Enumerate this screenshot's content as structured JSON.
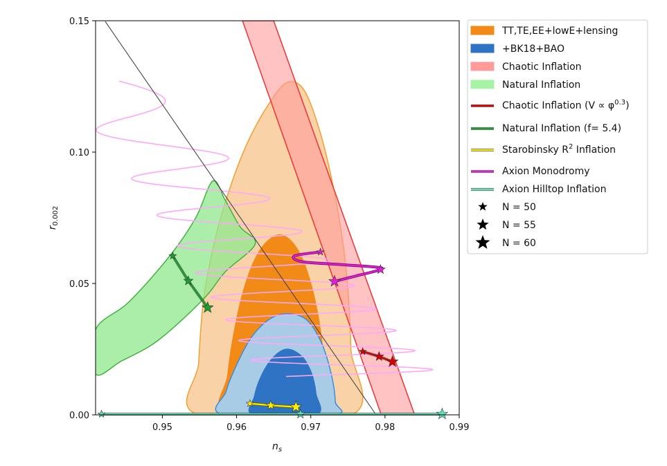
{
  "chart_data": {
    "type": "scatter",
    "title": "",
    "xlabel": "n_s",
    "ylabel": "r_{0.002}",
    "xlim": [
      0.941,
      0.99
    ],
    "ylim": [
      0.0,
      0.15
    ],
    "xticks": [
      {
        "value": 0.95,
        "label": "0.95"
      },
      {
        "value": 0.96,
        "label": "0.96"
      },
      {
        "value": 0.97,
        "label": "0.97"
      },
      {
        "value": 0.98,
        "label": "0.98"
      },
      {
        "value": 0.99,
        "label": "0.99"
      }
    ],
    "yticks": [
      {
        "value": 0.0,
        "label": "0.00"
      },
      {
        "value": 0.05,
        "label": "0.05"
      },
      {
        "value": 0.1,
        "label": "0.10"
      },
      {
        "value": 0.15,
        "label": "0.15"
      }
    ],
    "grid": false,
    "legend_position": "outside-right",
    "regions": [
      {
        "name": "TT,TE,EE+lowE+lensing (95%)",
        "color": "#f9d3a7",
        "edge": "#f0a030",
        "points": [
          [
            0.9548,
            0.0
          ],
          [
            0.9549,
            0.02
          ],
          [
            0.9556,
            0.045
          ],
          [
            0.9572,
            0.068
          ],
          [
            0.9593,
            0.088
          ],
          [
            0.9617,
            0.105
          ],
          [
            0.9645,
            0.119
          ],
          [
            0.9668,
            0.1265
          ],
          [
            0.969,
            0.124
          ],
          [
            0.971,
            0.11
          ],
          [
            0.9728,
            0.09
          ],
          [
            0.9742,
            0.068
          ],
          [
            0.975,
            0.048
          ],
          [
            0.9754,
            0.025
          ],
          [
            0.9755,
            0.0
          ]
        ]
      },
      {
        "name": "TT,TE,EE+lowE+lensing (68%)",
        "color": "#f28a18",
        "edge": "#f28a18",
        "points": [
          [
            0.9585,
            0.0
          ],
          [
            0.9588,
            0.015
          ],
          [
            0.9597,
            0.032
          ],
          [
            0.961,
            0.048
          ],
          [
            0.9628,
            0.061
          ],
          [
            0.9648,
            0.0675
          ],
          [
            0.9665,
            0.068
          ],
          [
            0.9684,
            0.062
          ],
          [
            0.97,
            0.05
          ],
          [
            0.9712,
            0.034
          ],
          [
            0.9718,
            0.018
          ],
          [
            0.972,
            0.0
          ]
        ]
      },
      {
        "name": "+BK18+BAO (95%)",
        "color": "#a8cce6",
        "edge": "#3a8de0",
        "points": [
          [
            0.9582,
            0.0
          ],
          [
            0.9586,
            0.009
          ],
          [
            0.96,
            0.019
          ],
          [
            0.962,
            0.0295
          ],
          [
            0.9645,
            0.0365
          ],
          [
            0.967,
            0.0385
          ],
          [
            0.9695,
            0.036
          ],
          [
            0.9715,
            0.027
          ],
          [
            0.9728,
            0.015
          ],
          [
            0.9733,
            0.005
          ],
          [
            0.973,
            0.0
          ]
        ]
      },
      {
        "name": "+BK18+BAO (68%)",
        "color": "#2f73c4",
        "edge": "#2f73c4",
        "points": [
          [
            0.9623,
            0.0
          ],
          [
            0.9624,
            0.007
          ],
          [
            0.9634,
            0.0152
          ],
          [
            0.965,
            0.022
          ],
          [
            0.9668,
            0.025
          ],
          [
            0.9688,
            0.0222
          ],
          [
            0.9701,
            0.0158
          ],
          [
            0.9707,
            0.008
          ],
          [
            0.9707,
            0.0
          ]
        ]
      },
      {
        "name": "Chaotic Inflation band",
        "color": "#ff9b9b",
        "opacity": 0.6,
        "edge": "#ee3333",
        "points": [
          [
            0.9608,
            0.15
          ],
          [
            0.965,
            0.15
          ],
          [
            0.984,
            0.0
          ],
          [
            0.9795,
            0.0
          ]
        ]
      },
      {
        "name": "Natural Inflation band",
        "color": "#8ee88e",
        "opacity": 0.75,
        "edge": "#45b045",
        "points": [
          [
            0.941,
            0.0325
          ],
          [
            0.9455,
            0.043
          ],
          [
            0.951,
            0.0605
          ],
          [
            0.9545,
            0.075
          ],
          [
            0.9568,
            0.089
          ],
          [
            0.9585,
            0.0815
          ],
          [
            0.9605,
            0.0715
          ],
          [
            0.9625,
            0.065
          ],
          [
            0.9585,
            0.0545
          ],
          [
            0.956,
            0.0455
          ],
          [
            0.952,
            0.0345
          ],
          [
            0.9485,
            0.0265
          ],
          [
            0.9445,
            0.0205
          ],
          [
            0.941,
            0.0155
          ]
        ]
      }
    ],
    "reference_line": {
      "name": "black diagonal",
      "color": "#444444",
      "points": [
        [
          0.9423,
          0.1497
        ],
        [
          0.9788,
          0.0
        ]
      ]
    },
    "axion_monodromy_curve": {
      "color": "#ffa8f8",
      "points": []
    },
    "series": [
      {
        "name": "Chaotic Inflation (V ∝ φ^0.3)",
        "color": "#d40000",
        "points": [
          {
            "x": 0.977,
            "y": 0.0241,
            "N": 50
          },
          {
            "x": 0.9792,
            "y": 0.0222,
            "N": 55
          },
          {
            "x": 0.981,
            "y": 0.0202,
            "N": 60
          }
        ]
      },
      {
        "name": "Natural Inflation (f= 5.4)",
        "color": "#1a9e2e",
        "points": [
          {
            "x": 0.9514,
            "y": 0.0605,
            "N": 50
          },
          {
            "x": 0.9535,
            "y": 0.051,
            "N": 55
          },
          {
            "x": 0.9561,
            "y": 0.0408,
            "N": 60
          }
        ]
      },
      {
        "name": "Starobinsky R^2 Inflation",
        "color": "#ffee00",
        "edge": "#666600",
        "points": [
          {
            "x": 0.9618,
            "y": 0.0043,
            "N": 50
          },
          {
            "x": 0.9646,
            "y": 0.0036,
            "N": 55
          },
          {
            "x": 0.968,
            "y": 0.003,
            "N": 60
          }
        ]
      },
      {
        "name": "Axion Monodromy",
        "color": "#e020d8",
        "points": [
          {
            "x": 0.9713,
            "y": 0.062,
            "N": 50
          },
          {
            "x": 0.9794,
            "y": 0.0553,
            "N": 55
          },
          {
            "x": 0.9732,
            "y": 0.0508,
            "N": 60
          }
        ]
      },
      {
        "name": "Axion Hilltop Inflation",
        "color": "#62e0b8",
        "points": [
          {
            "x": 0.9418,
            "y": 0.0003,
            "N": 50
          },
          {
            "x": 0.9686,
            "y": 0.0003,
            "N": 55
          },
          {
            "x": 0.9877,
            "y": 0.0003,
            "N": 60
          }
        ]
      }
    ]
  },
  "legend": {
    "items": [
      {
        "key": "tt",
        "label": "TT,TE,EE+lowE+lensing",
        "kind": "patch",
        "color": "#f28a18"
      },
      {
        "key": "bk",
        "label": "+BK18+BAO",
        "kind": "patch",
        "color": "#2f73c4"
      },
      {
        "key": "chaotic_band",
        "label": "Chaotic Inflation",
        "kind": "patch",
        "color": "#ff9b9b"
      },
      {
        "key": "natural_band",
        "label": "Natural Inflation",
        "kind": "patch",
        "color": "#a6f3a6"
      },
      {
        "key": "chaotic_line",
        "label": "Chaotic Inflation (V ∝ φ",
        "sup": "0.3",
        "suffix": ")",
        "kind": "line",
        "color": "#d40000"
      },
      {
        "key": "natural_line",
        "label": "Natural Inflation (f= 5.4)",
        "kind": "line",
        "color": "#1a9e2e"
      },
      {
        "key": "starobinsky",
        "label": "Starobinsky R",
        "sup": "2",
        "suffix": " Inflation",
        "kind": "line",
        "color": "#ffee00"
      },
      {
        "key": "monodromy",
        "label": "Axion Monodromy",
        "kind": "line",
        "color": "#e020d8"
      },
      {
        "key": "hilltop",
        "label": "Axion Hilltop Inflation",
        "kind": "line",
        "color": "#62e0b8"
      },
      {
        "key": "n50",
        "label": "N = 50",
        "kind": "star",
        "size": 7
      },
      {
        "key": "n55",
        "label": "N = 55",
        "kind": "star",
        "size": 9
      },
      {
        "key": "n60",
        "label": "N = 60",
        "kind": "star",
        "size": 11
      }
    ]
  }
}
